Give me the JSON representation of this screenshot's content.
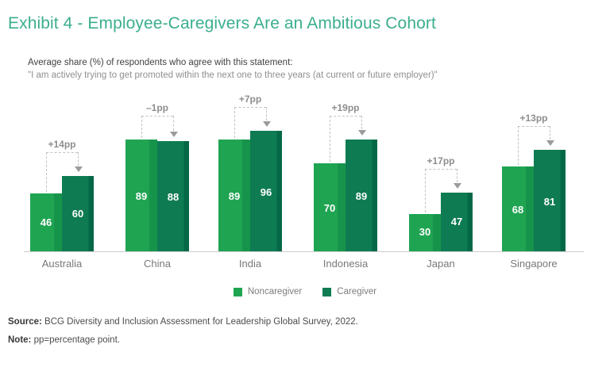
{
  "exhibit": {
    "title": "Exhibit 4 - Employee-Caregivers Are an Ambitious Cohort"
  },
  "subtitle": {
    "line1": "Average share (%) of respondents who agree with this statement:",
    "line2": "\"I am actively trying to get promoted within the next one to three years (at current or future employer)\""
  },
  "chart_data": {
    "type": "bar",
    "title": "Average share (%) of respondents who agree with this statement",
    "categories": [
      "Australia",
      "China",
      "India",
      "Indonesia",
      "Japan",
      "Singapore"
    ],
    "series": [
      {
        "name": "Noncaregiver",
        "values": [
          46,
          89,
          89,
          70,
          30,
          68
        ],
        "color": "#1FA452",
        "edge_color": "#17944B"
      },
      {
        "name": "Caregiver",
        "values": [
          60,
          88,
          96,
          89,
          47,
          81
        ],
        "color": "#0E7B53",
        "edge_color": "#046847"
      }
    ],
    "delta_labels": [
      "+14pp",
      "–1pp",
      "+7pp",
      "+19pp",
      "+17pp",
      "+13pp"
    ],
    "xlabel": "",
    "ylabel": "",
    "ylim": [
      0,
      100
    ],
    "grid": false,
    "legend_position": "bottom",
    "value_label_style": "white-inside-bars",
    "annotation_style": "dashed-bracket-with-down-arrow"
  },
  "legend": {
    "items": [
      {
        "label": "Noncaregiver",
        "color": "#1FA452"
      },
      {
        "label": "Caregiver",
        "color": "#0E7B53"
      }
    ]
  },
  "footer": {
    "source_label": "Source:",
    "source_text": " BCG Diversity and Inclusion Assessment for Leadership Global Survey, 2022.",
    "note_label": "Note:",
    "note_text": " pp=percentage point."
  },
  "colors": {
    "title": "#3BAE8E",
    "axis_line": "#cccccc",
    "annotation_text": "#8e8e8e",
    "dashed_line": "#c2c2c2",
    "background": "#ffffff"
  }
}
